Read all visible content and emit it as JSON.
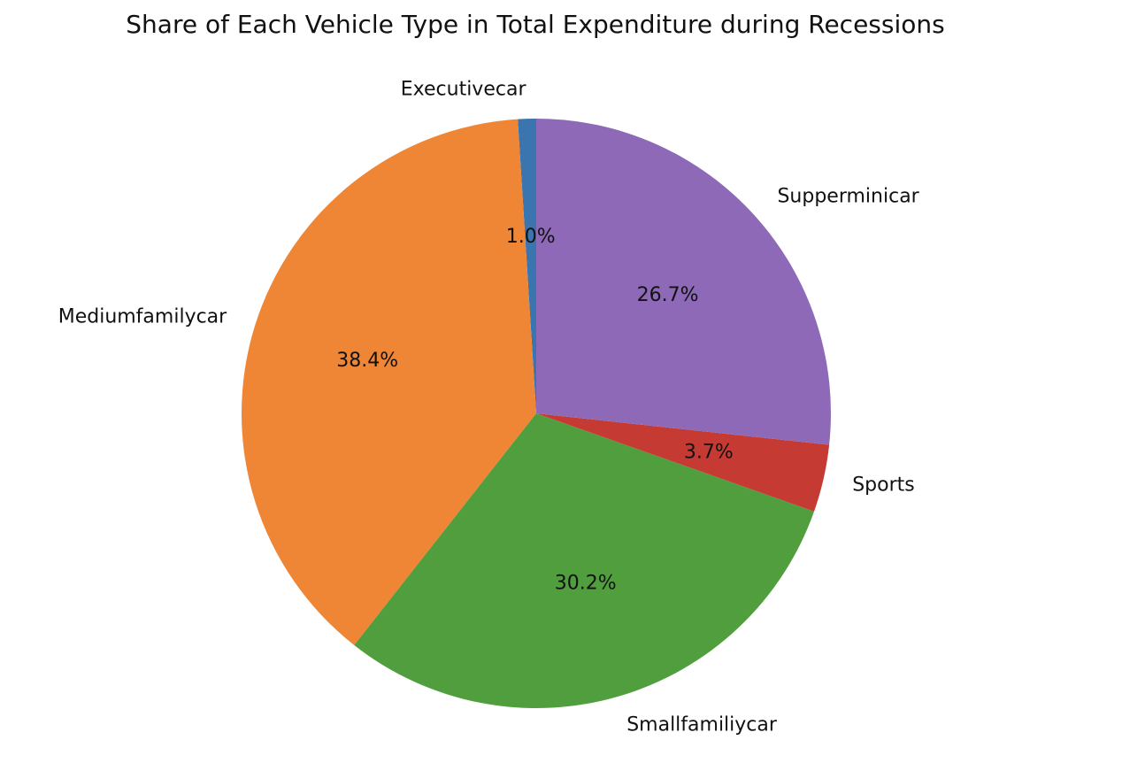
{
  "chart_data": {
    "type": "pie",
    "title": "Share of Each Vehicle Type in Total Expenditure during Recessions",
    "start_angle_deg": 90,
    "direction": "counterclockwise",
    "slices": [
      {
        "label": "Executivecar",
        "value": 1.0,
        "pct_label": "1.0%",
        "color": "#3b75af"
      },
      {
        "label": "Mediumfamilycar",
        "value": 38.4,
        "pct_label": "38.4%",
        "color": "#ef8636"
      },
      {
        "label": "Smallfamiliycar",
        "value": 30.2,
        "pct_label": "30.2%",
        "color": "#519e3e"
      },
      {
        "label": "Sports",
        "value": 3.7,
        "pct_label": "3.7%",
        "color": "#c53a32"
      },
      {
        "label": "Supperminicar",
        "value": 26.7,
        "pct_label": "26.7%",
        "color": "#8d69b8"
      }
    ]
  }
}
